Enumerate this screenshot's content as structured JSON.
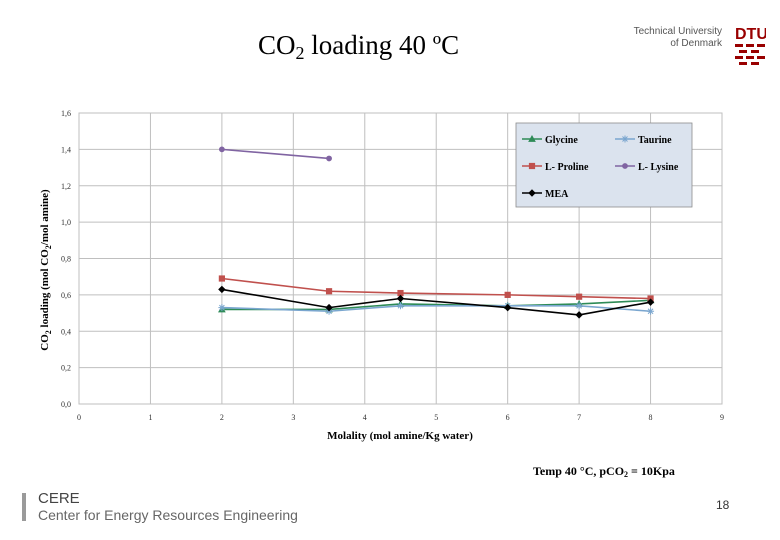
{
  "header": {
    "title_pre": "CO",
    "title_sub": "2",
    "title_post": " loading 40 ºC",
    "university_line1": "Technical University",
    "university_line2": "of Denmark",
    "logo_text": "DTU"
  },
  "chart_data": {
    "type": "line",
    "xlabel": "Molality (mol amine/Kg water)",
    "ylabel": "CO2 loading (mol CO2/mol amine)",
    "xlim": [
      0,
      9
    ],
    "ylim": [
      0,
      1.6
    ],
    "x_ticks": [
      "0",
      "1",
      "2",
      "3",
      "4",
      "5",
      "6",
      "7",
      "8",
      "9"
    ],
    "y_ticks": [
      "0,0",
      "0,2",
      "0,4",
      "0,6",
      "0,8",
      "1,0",
      "1,2",
      "1,4",
      "1,6"
    ],
    "grid": true,
    "legend_position": "top-right",
    "series": [
      {
        "name": "Glycine",
        "color": "#2e8b57",
        "marker": "triangle",
        "x": [
          2,
          3.5,
          4.5,
          6,
          7,
          8
        ],
        "y": [
          0.52,
          0.52,
          0.55,
          0.54,
          0.55,
          0.57
        ]
      },
      {
        "name": "Taurine",
        "color": "#7aa6cf",
        "marker": "star",
        "x": [
          2,
          3.5,
          4.5,
          6,
          7,
          8
        ],
        "y": [
          0.53,
          0.51,
          0.54,
          0.54,
          0.54,
          0.51
        ]
      },
      {
        "name": "L- Proline",
        "color": "#c0504d",
        "marker": "square",
        "x": [
          2,
          3.5,
          4.5,
          6,
          7,
          8
        ],
        "y": [
          0.69,
          0.62,
          0.61,
          0.6,
          0.59,
          0.58
        ]
      },
      {
        "name": "L- Lysine",
        "color": "#8064a2",
        "marker": "circle",
        "x": [
          2,
          3.5
        ],
        "y": [
          1.4,
          1.35
        ]
      },
      {
        "name": "MEA",
        "color": "#000000",
        "marker": "diamond",
        "x": [
          2,
          3.5,
          4.5,
          6,
          7,
          8
        ],
        "y": [
          0.63,
          0.53,
          0.58,
          0.53,
          0.49,
          0.56
        ]
      }
    ]
  },
  "footnote": {
    "pre": "Temp 40 °C,  pCO",
    "sub": "2",
    "post": " = 10Kpa"
  },
  "footer": {
    "abbr": "CERE",
    "name": "Center for Energy Resources Engineering",
    "page": "18"
  }
}
